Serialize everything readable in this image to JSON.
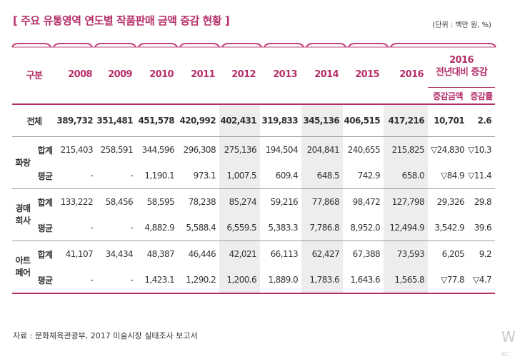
{
  "title": "[ 주요 유통영역 연도별 작품판매 금액 증감 현황 ]",
  "unit": "(단위 : 백만 원, %)",
  "header": {
    "category": "구분",
    "years": [
      "2008",
      "2009",
      "2010",
      "2011",
      "2012",
      "2013",
      "2014",
      "2015",
      "2016"
    ],
    "group_title_year": "2016",
    "group_title_label": "전년대비 증감",
    "change_amount": "증감금액",
    "change_rate": "증감률"
  },
  "total": {
    "label": "전체",
    "values": [
      "389,732",
      "351,481",
      "451,578",
      "420,992",
      "402,431",
      "319,833",
      "345,136",
      "406,515",
      "417,216",
      "10,701",
      "2.6"
    ]
  },
  "groups": [
    {
      "label_line1": "화랑",
      "label_line2": "",
      "rows": [
        {
          "label": "합계",
          "values": [
            "215,403",
            "258,591",
            "344,596",
            "296,308",
            "275,136",
            "194,504",
            "204,841",
            "240,655",
            "215,825",
            "▽24,830",
            "▽10.3"
          ]
        },
        {
          "label": "평균",
          "values": [
            "-",
            "-",
            "1,190.1",
            "973.1",
            "1,007.5",
            "609.4",
            "648.5",
            "742.9",
            "658.0",
            "▽84.9",
            "▽11.4"
          ]
        }
      ]
    },
    {
      "label_line1": "경매",
      "label_line2": "회사",
      "rows": [
        {
          "label": "합계",
          "values": [
            "133,222",
            "58,456",
            "58,595",
            "78,238",
            "85,274",
            "59,216",
            "77,868",
            "98,472",
            "127,798",
            "29,326",
            "29.8"
          ]
        },
        {
          "label": "평균",
          "values": [
            "-",
            "-",
            "4,882.9",
            "5,588.4",
            "6,559.5",
            "5,383.3",
            "7,786.8",
            "8,952.0",
            "12,494.9",
            "3,542.9",
            "39.6"
          ]
        }
      ]
    },
    {
      "label_line1": "아트",
      "label_line2": "페어",
      "rows": [
        {
          "label": "합계",
          "values": [
            "41,107",
            "34,434",
            "48,387",
            "46,446",
            "42,021",
            "66,113",
            "62,427",
            "67,388",
            "73,593",
            "6,205",
            "9.2"
          ]
        },
        {
          "label": "평균",
          "values": [
            "-",
            "-",
            "1,423.1",
            "1,290.2",
            "1,200.6",
            "1,889.0",
            "1,783.6",
            "1,643.6",
            "1,565.8",
            "▽77.8",
            "▽4.7"
          ]
        }
      ]
    }
  ],
  "source": "자료 : 문화체육관광부, 2017 미술시장 실태조사 보고서",
  "watermark": "W",
  "watermark_sub": "RC"
}
